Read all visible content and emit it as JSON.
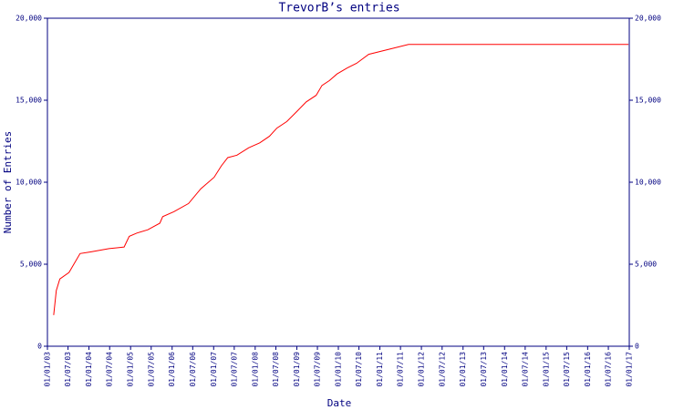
{
  "chart_data": {
    "type": "line",
    "title": "TrevorB’s entries",
    "x_label": "Date",
    "y_label": "Number of Entries",
    "x": [
      "2003-02-25",
      "2003-03-20",
      "2003-04-20",
      "2003-07-10",
      "2003-10-15",
      "2004-01-15",
      "2004-06-25",
      "2004-11-05",
      "2004-12-20",
      "2005-02-25",
      "2005-06-01",
      "2005-09-15",
      "2005-10-10",
      "2006-01-15",
      "2006-05-25",
      "2006-09-10",
      "2007-01-05",
      "2007-03-10",
      "2007-05-05",
      "2007-07-25",
      "2007-11-05",
      "2008-02-10",
      "2008-05-05",
      "2008-07-10",
      "2008-10-05",
      "2008-12-30",
      "2009-03-25",
      "2009-06-20",
      "2009-08-10",
      "2009-10-15",
      "2009-12-20",
      "2010-03-15",
      "2010-06-10",
      "2010-09-25",
      "2011-09-10",
      "2016-12-25"
    ],
    "series": [
      {
        "name": "TrevorB",
        "color": "#ff0000",
        "values": [
          1900,
          3400,
          4100,
          4500,
          5650,
          5750,
          5950,
          6050,
          6700,
          6900,
          7100,
          7500,
          7900,
          8200,
          8700,
          9600,
          10300,
          11000,
          11500,
          11650,
          12100,
          12400,
          12800,
          13300,
          13700,
          14300,
          14900,
          15300,
          15900,
          16200,
          16600,
          16950,
          17250,
          17800,
          18400,
          18400
        ]
      }
    ],
    "xlim": [
      "2003-01-01",
      "2017-01-01"
    ],
    "xticks": [
      {
        "value": "2003-01-01",
        "label": "01/01/03"
      },
      {
        "value": "2003-07-01",
        "label": "01/07/03"
      },
      {
        "value": "2004-01-01",
        "label": "01/01/04"
      },
      {
        "value": "2004-07-01",
        "label": "01/07/04"
      },
      {
        "value": "2005-01-01",
        "label": "01/01/05"
      },
      {
        "value": "2005-07-01",
        "label": "01/07/05"
      },
      {
        "value": "2006-01-01",
        "label": "01/01/06"
      },
      {
        "value": "2006-07-01",
        "label": "01/07/06"
      },
      {
        "value": "2007-01-01",
        "label": "01/01/07"
      },
      {
        "value": "2007-07-01",
        "label": "01/07/07"
      },
      {
        "value": "2008-01-01",
        "label": "01/01/08"
      },
      {
        "value": "2008-07-01",
        "label": "01/07/08"
      },
      {
        "value": "2009-01-01",
        "label": "01/01/09"
      },
      {
        "value": "2009-07-01",
        "label": "01/07/09"
      },
      {
        "value": "2010-01-01",
        "label": "01/01/10"
      },
      {
        "value": "2010-07-01",
        "label": "01/07/10"
      },
      {
        "value": "2011-01-01",
        "label": "01/01/11"
      },
      {
        "value": "2011-07-01",
        "label": "01/07/11"
      },
      {
        "value": "2012-01-01",
        "label": "01/01/12"
      },
      {
        "value": "2012-07-01",
        "label": "01/07/12"
      },
      {
        "value": "2013-01-01",
        "label": "01/01/13"
      },
      {
        "value": "2013-07-01",
        "label": "01/07/13"
      },
      {
        "value": "2014-01-01",
        "label": "01/01/14"
      },
      {
        "value": "2014-07-01",
        "label": "01/07/14"
      },
      {
        "value": "2015-01-01",
        "label": "01/01/15"
      },
      {
        "value": "2015-07-01",
        "label": "01/07/15"
      },
      {
        "value": "2016-01-01",
        "label": "01/01/16"
      },
      {
        "value": "2016-07-01",
        "label": "01/07/16"
      },
      {
        "value": "2017-01-01",
        "label": "01/01/17"
      }
    ],
    "ylim": [
      0,
      20000
    ],
    "yticks": [
      0,
      {
        "value": 5000,
        "label": "5,000"
      },
      {
        "value": 10000,
        "label": "10,000"
      },
      {
        "value": 15000,
        "label": "15,000"
      },
      {
        "value": 20000,
        "label": "20,000"
      }
    ],
    "axis_color": "#000080"
  }
}
